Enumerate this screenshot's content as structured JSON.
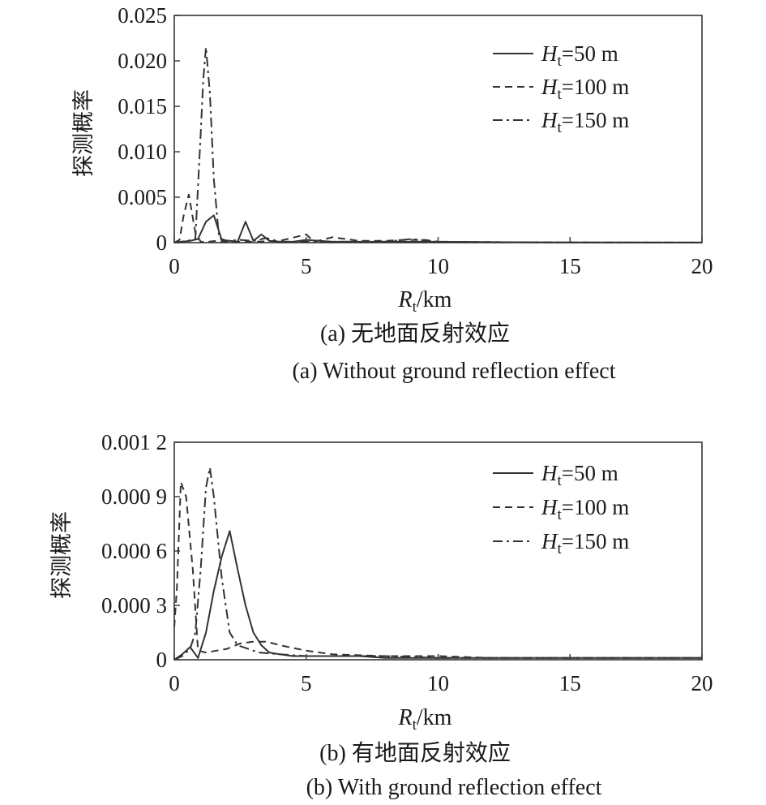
{
  "chart_data": [
    {
      "type": "line",
      "caption_cn": "(a) 无地面反射效应",
      "caption_en": "(a) Without ground reflection effect",
      "ylabel": "探测概率",
      "xlabel_main": "R",
      "xlabel_sub": "t",
      "xlabel_unit": "/km",
      "xlim": [
        0,
        20
      ],
      "ylim": [
        0,
        0.025
      ],
      "xticks": [
        0,
        5,
        10,
        15,
        20
      ],
      "xtick_labels": [
        "0",
        "5",
        "10",
        "15",
        "20"
      ],
      "yticks": [
        0,
        0.005,
        0.01,
        0.015,
        0.02,
        0.025
      ],
      "ytick_labels": [
        "0",
        "0.005",
        "0.010",
        "0.015",
        "0.020",
        "0.025"
      ],
      "legend_position": "top-right",
      "series": [
        {
          "name": "Ht=50 m",
          "name_main": "H",
          "name_sub": "t",
          "name_rest": "=50 m",
          "dash": "solid",
          "x": [
            0,
            0.3,
            0.6,
            0.9,
            1.2,
            1.5,
            1.8,
            2.1,
            2.4,
            2.7,
            3.0,
            3.3,
            3.6,
            4.0,
            4.5,
            5.0,
            6.0,
            7.0,
            8.0,
            9.0,
            10.0,
            12.0,
            15.0,
            20.0
          ],
          "y": [
            0,
            0.0001,
            0.0002,
            0.0004,
            0.0023,
            0.003,
            0.0003,
            0.0002,
            0.0001,
            0.0023,
            0.0002,
            0.0009,
            0.0002,
            0.0001,
            0.0001,
            0.0003,
            0.0001,
            0.0001,
            0.0001,
            0.0001,
            0.0001,
            5e-05,
            3e-05,
            1e-05
          ]
        },
        {
          "name": "Ht=100 m",
          "name_main": "H",
          "name_sub": "t",
          "name_rest": "=100 m",
          "dash": "dashed",
          "x": [
            0,
            0.2,
            0.35,
            0.55,
            0.8,
            1.0,
            1.3,
            1.6,
            2.0,
            3.0,
            4.0,
            5.0,
            5.3,
            6.0,
            7.0,
            8.0,
            8.7,
            9.5,
            10.0,
            12.0,
            15.0,
            20.0
          ],
          "y": [
            0,
            0.0003,
            0.0029,
            0.0053,
            0.0011,
            0.0001,
            0.0001,
            0.0002,
            0.0001,
            0.0001,
            0.0002,
            0.0009,
            0.0001,
            0.0006,
            0.0002,
            0.0002,
            0.0003,
            0.0003,
            0.0001,
            5e-05,
            2e-05,
            1e-05
          ]
        },
        {
          "name": "Ht=150 m",
          "name_main": "H",
          "name_sub": "t",
          "name_rest": "=150 m",
          "dash": "dashdot",
          "x": [
            0,
            0.5,
            0.8,
            1.0,
            1.1,
            1.2,
            1.35,
            1.5,
            1.7,
            2.0,
            2.5,
            3.0,
            3.5,
            4.0,
            5.0,
            6.0,
            7.0,
            8.0,
            9.0,
            10.0,
            12.0,
            15.0,
            20.0
          ],
          "y": [
            0,
            0.0002,
            0.0004,
            0.012,
            0.018,
            0.0215,
            0.0165,
            0.007,
            0.0005,
            0.0002,
            0.0003,
            0.0002,
            0.0005,
            0.0001,
            0.0001,
            0.0001,
            0.0001,
            0.0001,
            0.0004,
            0.0001,
            5e-05,
            2e-05,
            1e-05
          ]
        }
      ]
    },
    {
      "type": "line",
      "caption_cn": "(b) 有地面反射效应",
      "caption_en": "(b) With ground reflection effect",
      "ylabel": "探测概率",
      "xlabel_main": "R",
      "xlabel_sub": "t",
      "xlabel_unit": "/km",
      "xlim": [
        0,
        20
      ],
      "ylim": [
        0,
        0.0012
      ],
      "xticks": [
        0,
        5,
        10,
        15,
        20
      ],
      "xtick_labels": [
        "0",
        "5",
        "10",
        "15",
        "20"
      ],
      "yticks": [
        0,
        0.0003,
        0.0006,
        0.0009,
        0.0012
      ],
      "ytick_labels": [
        "0",
        "0.000 3",
        "0.000 6",
        "0.000 9",
        "0.001 2"
      ],
      "legend_position": "top-right",
      "series": [
        {
          "name": "Ht=50 m",
          "name_main": "H",
          "name_sub": "t",
          "name_rest": "=50 m",
          "dash": "solid",
          "x": [
            0,
            0.3,
            0.6,
            0.9,
            1.2,
            1.5,
            1.8,
            2.1,
            2.4,
            2.7,
            3.0,
            3.3,
            3.6,
            4.0,
            4.5,
            5.0,
            6.0,
            7.0,
            8.0,
            10.0,
            12.0,
            15.0,
            20.0
          ],
          "y": [
            0,
            3e-05,
            7e-05,
            1e-05,
            0.00015,
            0.00038,
            0.00057,
            0.00071,
            0.0005,
            0.0003,
            0.00015,
            8e-05,
            4e-05,
            3e-05,
            2e-05,
            2e-05,
            2e-05,
            2e-05,
            1e-05,
            1e-05,
            1e-05,
            1e-05,
            1e-05
          ]
        },
        {
          "name": "Ht=100 m",
          "name_main": "H",
          "name_sub": "t",
          "name_rest": "=100 m",
          "dash": "dashed",
          "x": [
            0,
            0.1,
            0.25,
            0.45,
            0.7,
            0.9,
            1.2,
            1.6,
            2.0,
            2.5,
            3.0,
            3.5,
            4.0,
            5.0,
            6.0,
            8.0,
            10.0,
            12.0,
            15.0,
            20.0
          ],
          "y": [
            0.00018,
            0.0004,
            0.00098,
            0.0009,
            0.0005,
            5e-05,
            4e-05,
            5e-05,
            6e-05,
            9e-05,
            0.0001,
            0.0001,
            8e-05,
            5e-05,
            3e-05,
            2e-05,
            2e-05,
            1e-05,
            1e-05,
            1e-05
          ]
        },
        {
          "name": "Ht=150 m",
          "name_main": "H",
          "name_sub": "t",
          "name_rest": "=150 m",
          "dash": "dashdot",
          "x": [
            0,
            0.3,
            0.6,
            0.8,
            1.0,
            1.2,
            1.35,
            1.5,
            1.8,
            2.1,
            2.4,
            2.8,
            3.2,
            4.0,
            5.0,
            6.0,
            8.0,
            10.0,
            12.0,
            15.0,
            20.0
          ],
          "y": [
            0,
            2e-05,
            6e-05,
            0.00015,
            0.0005,
            0.00095,
            0.00106,
            0.0009,
            0.00045,
            0.00015,
            8e-05,
            6e-05,
            4e-05,
            3e-05,
            2e-05,
            2e-05,
            2e-05,
            1e-05,
            1e-05,
            1e-05,
            1e-05
          ]
        }
      ]
    }
  ]
}
